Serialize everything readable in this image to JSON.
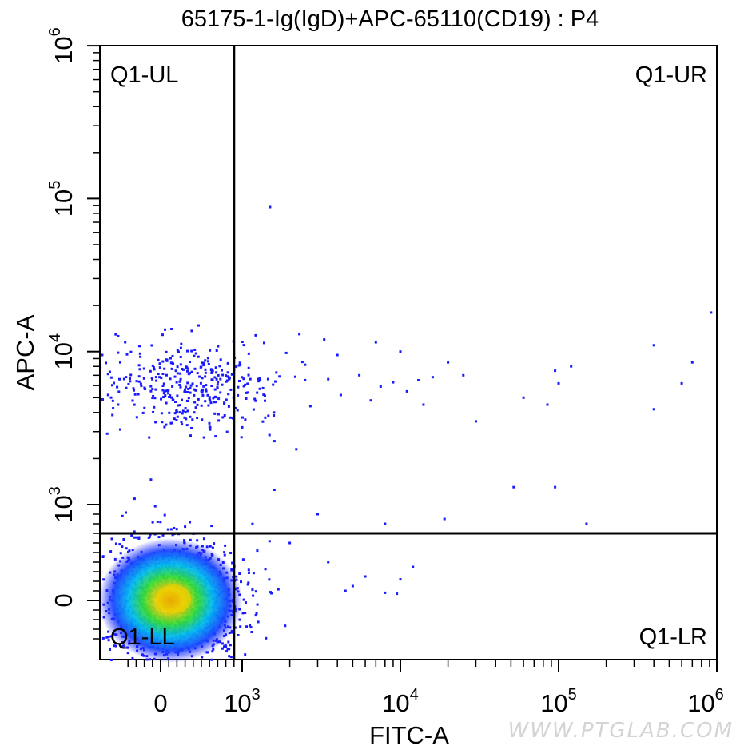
{
  "chart_data": {
    "type": "scatter",
    "title": "65175-1-Ig(IgD)+APC-65110(CD19) : P4",
    "xlabel": "FITC-A",
    "ylabel": "APC-A",
    "x_scale": "biexponential",
    "y_scale": "biexponential",
    "xlim": [
      -500,
      1000000
    ],
    "ylim": [
      -500,
      1000000
    ],
    "x_tick_labels": [
      {
        "value": 0,
        "base": "0",
        "exp": ""
      },
      {
        "value": 1000,
        "base": "10",
        "exp": "3"
      },
      {
        "value": 10000,
        "base": "10",
        "exp": "4"
      },
      {
        "value": 100000,
        "base": "10",
        "exp": "5"
      },
      {
        "value": 1000000,
        "base": "10",
        "exp": "6"
      }
    ],
    "y_tick_labels": [
      {
        "value": 0,
        "base": "0",
        "exp": ""
      },
      {
        "value": 1000,
        "base": "10",
        "exp": "3"
      },
      {
        "value": 10000,
        "base": "10",
        "exp": "4"
      },
      {
        "value": 100000,
        "base": "10",
        "exp": "5"
      },
      {
        "value": 1000000,
        "base": "10",
        "exp": "6"
      }
    ],
    "gate": {
      "type": "quadrant",
      "x": 900,
      "y": 700
    },
    "quadrants": {
      "UL": "Q1-UL",
      "UR": "Q1-UR",
      "LL": "Q1-LL",
      "LR": "Q1-LR"
    },
    "populations": [
      {
        "name": "",
        "center_x": 120,
        "center_y": 0,
        "density": "high",
        "color_scale": "blue-green-yellow-red"
      },
      {
        "name": "",
        "center_x": 300,
        "center_y": 6000,
        "density": "low",
        "color": "#1a1aff"
      }
    ],
    "points": [
      [
        1500,
        88000
      ],
      [
        920000,
        18000
      ],
      [
        400000,
        11000
      ],
      [
        700000,
        8500
      ],
      [
        600000,
        6200
      ],
      [
        400000,
        4200
      ],
      [
        150000,
        800
      ],
      [
        95000,
        1300
      ],
      [
        52000,
        1300
      ],
      [
        95000,
        7500
      ],
      [
        100000,
        6200
      ],
      [
        120000,
        8000
      ],
      [
        85000,
        4500
      ],
      [
        30000,
        3500
      ],
      [
        8000,
        800
      ],
      [
        3000,
        900
      ],
      [
        1600,
        1250
      ],
      [
        2000,
        600
      ],
      [
        3500,
        400
      ],
      [
        6000,
        250
      ],
      [
        5000,
        150
      ],
      [
        4500,
        100
      ],
      [
        8000,
        80
      ],
      [
        10000,
        220
      ],
      [
        12000,
        350
      ],
      [
        9500,
        70
      ],
      [
        19000,
        850
      ],
      [
        25000,
        7000
      ],
      [
        20000,
        8500
      ],
      [
        60000,
        5000
      ],
      [
        13000,
        6500
      ],
      [
        1100,
        7800
      ],
      [
        1300,
        6500
      ],
      [
        1200,
        4900
      ],
      [
        1000,
        3200
      ],
      [
        1900,
        9800
      ],
      [
        2500,
        8200
      ],
      [
        2700,
        4400
      ],
      [
        3500,
        6600
      ],
      [
        4200,
        5200
      ],
      [
        5500,
        7000
      ],
      [
        6500,
        4800
      ],
      [
        7500,
        5900
      ],
      [
        9000,
        6300
      ],
      [
        11000,
        5500
      ],
      [
        14000,
        4500
      ],
      [
        16000,
        6800
      ],
      [
        7000,
        11500
      ],
      [
        10000,
        10000
      ],
      [
        3300,
        12000
      ],
      [
        2300,
        13000
      ],
      [
        4000,
        9500
      ],
      [
        2200,
        2300
      ],
      [
        1600,
        2600
      ],
      [
        1400,
        3700
      ]
    ]
  },
  "watermark": "WWW.PTGLAB.COM"
}
